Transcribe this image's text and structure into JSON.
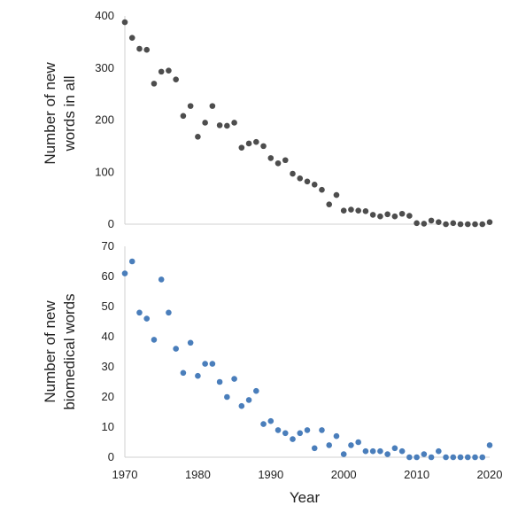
{
  "chart_data": [
    {
      "type": "scatter",
      "title": "",
      "xlabel": "",
      "ylabel_lines": [
        "Number of new",
        "words in all"
      ],
      "xlim": [
        1970,
        2020
      ],
      "ylim": [
        0,
        400
      ],
      "yticks": [
        0,
        100,
        200,
        300,
        400
      ],
      "grid": false,
      "color": "#4d4d4d",
      "series": [
        {
          "x": [
            1970,
            1971,
            1972,
            1973,
            1974,
            1975,
            1976,
            1977,
            1978,
            1979,
            1980,
            1981,
            1982,
            1983,
            1984,
            1985,
            1986,
            1987,
            1988,
            1989,
            1990,
            1991,
            1992,
            1993,
            1994,
            1995,
            1996,
            1997,
            1998,
            1999,
            2000,
            2001,
            2002,
            2003,
            2004,
            2005,
            2006,
            2007,
            2008,
            2009,
            2010,
            2011,
            2012,
            2013,
            2014,
            2015,
            2016,
            2017,
            2018,
            2019,
            2020
          ],
          "y": [
            388,
            358,
            337,
            335,
            270,
            293,
            295,
            278,
            208,
            227,
            168,
            195,
            227,
            190,
            189,
            195,
            147,
            155,
            158,
            150,
            127,
            117,
            123,
            97,
            88,
            82,
            76,
            66,
            38,
            56,
            26,
            28,
            26,
            25,
            18,
            15,
            19,
            15,
            20,
            16,
            2,
            1,
            7,
            4,
            0,
            2,
            0,
            0,
            0,
            0,
            4
          ]
        }
      ]
    },
    {
      "type": "scatter",
      "title": "",
      "xlabel": "Year",
      "ylabel_lines": [
        "Number of new",
        "biomedical words"
      ],
      "xlim": [
        1970,
        2020
      ],
      "ylim": [
        0,
        70
      ],
      "yticks": [
        0,
        10,
        20,
        30,
        40,
        50,
        60,
        70
      ],
      "xticks": [
        1970,
        1980,
        1990,
        2000,
        2010,
        2020
      ],
      "grid": false,
      "color": "#4a7ebb",
      "series": [
        {
          "x": [
            1970,
            1971,
            1972,
            1973,
            1974,
            1975,
            1976,
            1977,
            1978,
            1979,
            1980,
            1981,
            1982,
            1983,
            1984,
            1985,
            1986,
            1987,
            1988,
            1989,
            1990,
            1991,
            1992,
            1993,
            1994,
            1995,
            1996,
            1997,
            1998,
            1999,
            2000,
            2001,
            2002,
            2003,
            2004,
            2005,
            2006,
            2007,
            2008,
            2009,
            2010,
            2011,
            2012,
            2013,
            2014,
            2015,
            2016,
            2017,
            2018,
            2019,
            2020
          ],
          "y": [
            61,
            65,
            48,
            46,
            39,
            59,
            48,
            36,
            28,
            38,
            27,
            31,
            31,
            25,
            20,
            26,
            17,
            19,
            22,
            11,
            12,
            9,
            8,
            6,
            8,
            9,
            3,
            9,
            4,
            7,
            1,
            4,
            5,
            2,
            2,
            2,
            1,
            3,
            2,
            0,
            0,
            1,
            0,
            2,
            0,
            0,
            0,
            0,
            0,
            0,
            4
          ]
        }
      ]
    }
  ]
}
